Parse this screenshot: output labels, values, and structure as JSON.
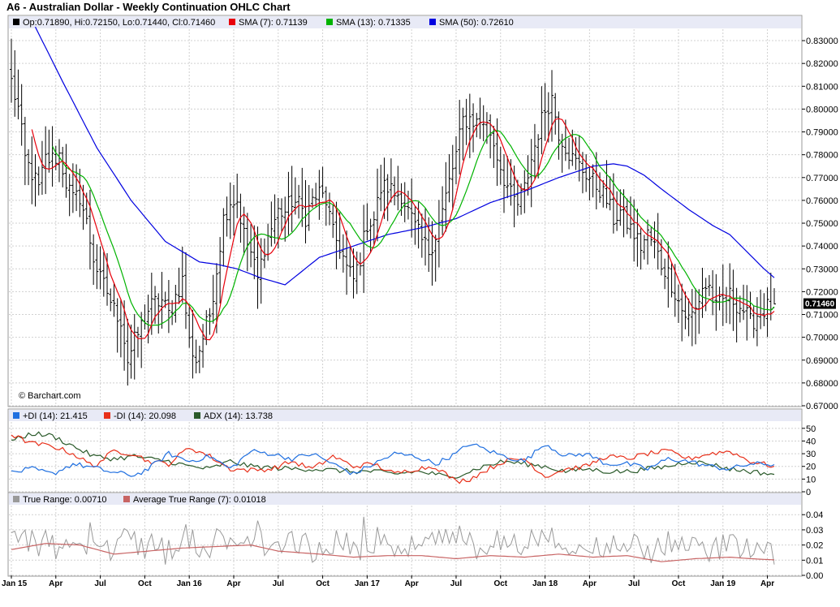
{
  "title": "A6 - Australian Dollar - Weekly Continuation OHLC Chart",
  "watermark": "© Barchart.com",
  "colors": {
    "sma7": "#e8000b",
    "sma13": "#00b300",
    "sma50": "#0000e0",
    "plus_di": "#1f6fe0",
    "minus_di": "#e8301a",
    "adx": "#2a5a2a",
    "true_range": "#9a9a9a",
    "atr": "#c86464",
    "panel_header": "#e8eaf6",
    "grid": "#d0d0d0"
  },
  "chart_data": [
    {
      "type": "ohlc",
      "name": "price",
      "legend": {
        "ohlc": "Op:0.71890, Hi:0.72150, Lo:0.71440, Cl:0.71460",
        "sma7": "SMA (7): 0.71139",
        "sma13": "SMA (13): 0.71335",
        "sma50": "SMA (50): 0.72610"
      },
      "last_price_label": "0.71460",
      "ylim": [
        0.67,
        0.835
      ],
      "yticks": [
        "0.67000",
        "0.68000",
        "0.69000",
        "0.70000",
        "0.71000",
        "0.72000",
        "0.73000",
        "0.74000",
        "0.75000",
        "0.76000",
        "0.77000",
        "0.78000",
        "0.79000",
        "0.80000",
        "0.81000",
        "0.82000",
        "0.83000"
      ],
      "x_categories": [
        "Jan 15",
        "Apr",
        "Jul",
        "Oct",
        "Jan 16",
        "Apr",
        "Jul",
        "Oct",
        "Jan 17",
        "Apr",
        "Jul",
        "Oct",
        "Jan 18",
        "Apr",
        "Jul",
        "Oct",
        "Jan 19",
        "Apr"
      ],
      "x_tick_weeks": [
        0,
        13,
        26,
        39,
        52,
        65,
        78,
        91,
        104,
        117,
        130,
        143,
        156,
        169,
        182,
        195,
        208,
        221
      ],
      "close_anchors": [
        [
          0,
          0.812
        ],
        [
          2,
          0.8
        ],
        [
          4,
          0.778
        ],
        [
          6,
          0.772
        ],
        [
          8,
          0.765
        ],
        [
          10,
          0.778
        ],
        [
          12,
          0.778
        ],
        [
          14,
          0.78
        ],
        [
          16,
          0.768
        ],
        [
          18,
          0.76
        ],
        [
          20,
          0.762
        ],
        [
          22,
          0.75
        ],
        [
          24,
          0.735
        ],
        [
          26,
          0.725
        ],
        [
          28,
          0.72
        ],
        [
          30,
          0.712
        ],
        [
          32,
          0.708
        ],
        [
          34,
          0.69
        ],
        [
          36,
          0.698
        ],
        [
          38,
          0.705
        ],
        [
          40,
          0.712
        ],
        [
          42,
          0.715
        ],
        [
          44,
          0.716
        ],
        [
          46,
          0.71
        ],
        [
          48,
          0.718
        ],
        [
          50,
          0.725
        ],
        [
          52,
          0.698
        ],
        [
          54,
          0.69
        ],
        [
          56,
          0.7
        ],
        [
          58,
          0.71
        ],
        [
          60,
          0.73
        ],
        [
          62,
          0.752
        ],
        [
          64,
          0.76
        ],
        [
          66,
          0.76
        ],
        [
          68,
          0.745
        ],
        [
          70,
          0.737
        ],
        [
          72,
          0.725
        ],
        [
          74,
          0.74
        ],
        [
          76,
          0.748
        ],
        [
          78,
          0.755
        ],
        [
          80,
          0.755
        ],
        [
          82,
          0.76
        ],
        [
          84,
          0.758
        ],
        [
          86,
          0.753
        ],
        [
          88,
          0.76
        ],
        [
          90,
          0.763
        ],
        [
          92,
          0.76
        ],
        [
          94,
          0.745
        ],
        [
          96,
          0.74
        ],
        [
          98,
          0.73
        ],
        [
          100,
          0.725
        ],
        [
          102,
          0.735
        ],
        [
          104,
          0.75
        ],
        [
          106,
          0.752
        ],
        [
          108,
          0.765
        ],
        [
          110,
          0.766
        ],
        [
          112,
          0.763
        ],
        [
          114,
          0.763
        ],
        [
          116,
          0.755
        ],
        [
          118,
          0.748
        ],
        [
          120,
          0.742
        ],
        [
          122,
          0.738
        ],
        [
          124,
          0.745
        ],
        [
          126,
          0.755
        ],
        [
          128,
          0.768
        ],
        [
          130,
          0.78
        ],
        [
          132,
          0.795
        ],
        [
          134,
          0.796
        ],
        [
          136,
          0.794
        ],
        [
          138,
          0.795
        ],
        [
          140,
          0.79
        ],
        [
          142,
          0.78
        ],
        [
          144,
          0.77
        ],
        [
          146,
          0.762
        ],
        [
          148,
          0.758
        ],
        [
          150,
          0.765
        ],
        [
          152,
          0.778
        ],
        [
          154,
          0.79
        ],
        [
          156,
          0.8
        ],
        [
          158,
          0.805
        ],
        [
          160,
          0.79
        ],
        [
          162,
          0.784
        ],
        [
          164,
          0.778
        ],
        [
          166,
          0.775
        ],
        [
          168,
          0.772
        ],
        [
          170,
          0.768
        ],
        [
          172,
          0.765
        ],
        [
          174,
          0.76
        ],
        [
          176,
          0.752
        ],
        [
          178,
          0.755
        ],
        [
          180,
          0.75
        ],
        [
          182,
          0.745
        ],
        [
          184,
          0.74
        ],
        [
          186,
          0.745
        ],
        [
          188,
          0.74
        ],
        [
          190,
          0.732
        ],
        [
          192,
          0.728
        ],
        [
          194,
          0.72
        ],
        [
          196,
          0.712
        ],
        [
          198,
          0.708
        ],
        [
          200,
          0.712
        ],
        [
          202,
          0.722
        ],
        [
          204,
          0.722
        ],
        [
          206,
          0.712
        ],
        [
          208,
          0.716
        ],
        [
          210,
          0.718
        ],
        [
          212,
          0.715
        ],
        [
          214,
          0.712
        ],
        [
          216,
          0.706
        ],
        [
          218,
          0.71
        ],
        [
          220,
          0.712
        ],
        [
          222,
          0.714
        ],
        [
          223,
          0.7146
        ]
      ],
      "sma50_anchors": [
        [
          7,
          0.836
        ],
        [
          15,
          0.812
        ],
        [
          25,
          0.783
        ],
        [
          35,
          0.76
        ],
        [
          45,
          0.742
        ],
        [
          55,
          0.733
        ],
        [
          60,
          0.732
        ],
        [
          66,
          0.73
        ],
        [
          73,
          0.726
        ],
        [
          80,
          0.723
        ],
        [
          90,
          0.735
        ],
        [
          100,
          0.74
        ],
        [
          110,
          0.745
        ],
        [
          120,
          0.748
        ],
        [
          130,
          0.752
        ],
        [
          140,
          0.759
        ],
        [
          150,
          0.764
        ],
        [
          160,
          0.77
        ],
        [
          170,
          0.775
        ],
        [
          176,
          0.776
        ],
        [
          180,
          0.775
        ],
        [
          185,
          0.771
        ],
        [
          190,
          0.765
        ],
        [
          198,
          0.756
        ],
        [
          205,
          0.749
        ],
        [
          210,
          0.745
        ],
        [
          216,
          0.736
        ],
        [
          220,
          0.73
        ],
        [
          223,
          0.7261
        ]
      ],
      "sma7_last": 0.71139,
      "sma13_last": 0.71335,
      "sma50_last": 0.7261
    },
    {
      "type": "line",
      "name": "dmi",
      "legend": {
        "plus_di": "+DI (14): 21.415",
        "minus_di": "-DI (14): 20.098",
        "adx": "ADX (14): 13.738"
      },
      "ylim": [
        0,
        55
      ],
      "yticks": [
        "0",
        "10",
        "20",
        "30",
        "40",
        "50"
      ],
      "series": [
        {
          "key": "plus_di",
          "anchors": [
            [
              0,
              15
            ],
            [
              6,
              18
            ],
            [
              12,
              14
            ],
            [
              18,
              22
            ],
            [
              24,
              19
            ],
            [
              30,
              15
            ],
            [
              36,
              13
            ],
            [
              40,
              18
            ],
            [
              46,
              30
            ],
            [
              52,
              24
            ],
            [
              58,
              28
            ],
            [
              64,
              18
            ],
            [
              70,
              32
            ],
            [
              76,
              30
            ],
            [
              82,
              26
            ],
            [
              88,
              30
            ],
            [
              94,
              22
            ],
            [
              100,
              14
            ],
            [
              106,
              22
            ],
            [
              112,
              30
            ],
            [
              118,
              28
            ],
            [
              124,
              22
            ],
            [
              130,
              30
            ],
            [
              134,
              38
            ],
            [
              138,
              34
            ],
            [
              144,
              28
            ],
            [
              150,
              24
            ],
            [
              156,
              38
            ],
            [
              162,
              28
            ],
            [
              168,
              30
            ],
            [
              174,
              22
            ],
            [
              180,
              22
            ],
            [
              186,
              18
            ],
            [
              192,
              26
            ],
            [
              198,
              24
            ],
            [
              204,
              20
            ],
            [
              210,
              18
            ],
            [
              216,
              22
            ],
            [
              223,
              21.4
            ]
          ]
        },
        {
          "key": "minus_di",
          "anchors": [
            [
              0,
              45
            ],
            [
              6,
              38
            ],
            [
              12,
              36
            ],
            [
              18,
              30
            ],
            [
              24,
              20
            ],
            [
              30,
              32
            ],
            [
              36,
              30
            ],
            [
              40,
              24
            ],
            [
              46,
              22
            ],
            [
              52,
              35
            ],
            [
              58,
              28
            ],
            [
              64,
              18
            ],
            [
              70,
              17
            ],
            [
              76,
              18
            ],
            [
              82,
              24
            ],
            [
              88,
              18
            ],
            [
              94,
              28
            ],
            [
              100,
              20
            ],
            [
              106,
              22
            ],
            [
              112,
              14
            ],
            [
              118,
              18
            ],
            [
              124,
              20
            ],
            [
              130,
              8
            ],
            [
              134,
              10
            ],
            [
              138,
              16
            ],
            [
              144,
              24
            ],
            [
              150,
              26
            ],
            [
              156,
              12
            ],
            [
              162,
              18
            ],
            [
              168,
              20
            ],
            [
              174,
              28
            ],
            [
              180,
              26
            ],
            [
              186,
              30
            ],
            [
              192,
              32
            ],
            [
              198,
              26
            ],
            [
              204,
              30
            ],
            [
              210,
              32
            ],
            [
              216,
              24
            ],
            [
              223,
              20.1
            ]
          ]
        },
        {
          "key": "adx",
          "anchors": [
            [
              0,
              40
            ],
            [
              6,
              46
            ],
            [
              12,
              44
            ],
            [
              18,
              36
            ],
            [
              24,
              28
            ],
            [
              30,
              26
            ],
            [
              36,
              28
            ],
            [
              40,
              26
            ],
            [
              46,
              24
            ],
            [
              52,
              20
            ],
            [
              58,
              18
            ],
            [
              64,
              24
            ],
            [
              70,
              20
            ],
            [
              76,
              19
            ],
            [
              82,
              18
            ],
            [
              88,
              18
            ],
            [
              94,
              17
            ],
            [
              100,
              16
            ],
            [
              106,
              16
            ],
            [
              112,
              14
            ],
            [
              118,
              16
            ],
            [
              124,
              14
            ],
            [
              128,
              11
            ],
            [
              134,
              16
            ],
            [
              138,
              20
            ],
            [
              144,
              24
            ],
            [
              150,
              22
            ],
            [
              156,
              20
            ],
            [
              162,
              16
            ],
            [
              168,
              18
            ],
            [
              174,
              16
            ],
            [
              180,
              16
            ],
            [
              186,
              18
            ],
            [
              192,
              20
            ],
            [
              198,
              24
            ],
            [
              204,
              22
            ],
            [
              210,
              18
            ],
            [
              216,
              16
            ],
            [
              223,
              13.7
            ]
          ]
        }
      ]
    },
    {
      "type": "line",
      "name": "true_range",
      "legend": {
        "true_range": "True Range: 0.00710",
        "atr": "Average True Range (7): 0.01018"
      },
      "ylim": [
        0,
        0.046
      ],
      "yticks": [
        "0.00",
        "0.01",
        "0.02",
        "0.03",
        "0.04"
      ],
      "true_range_last": 0.0071,
      "atr_anchors": [
        [
          0,
          0.017
        ],
        [
          10,
          0.021
        ],
        [
          20,
          0.02
        ],
        [
          30,
          0.014
        ],
        [
          40,
          0.016
        ],
        [
          50,
          0.018
        ],
        [
          60,
          0.019
        ],
        [
          70,
          0.02
        ],
        [
          78,
          0.016
        ],
        [
          90,
          0.014
        ],
        [
          100,
          0.012
        ],
        [
          110,
          0.013
        ],
        [
          120,
          0.013
        ],
        [
          130,
          0.011
        ],
        [
          140,
          0.013
        ],
        [
          150,
          0.012
        ],
        [
          160,
          0.014
        ],
        [
          170,
          0.012
        ],
        [
          180,
          0.013
        ],
        [
          190,
          0.009
        ],
        [
          200,
          0.011
        ],
        [
          210,
          0.012
        ],
        [
          216,
          0.011
        ],
        [
          223,
          0.0102
        ]
      ]
    }
  ]
}
